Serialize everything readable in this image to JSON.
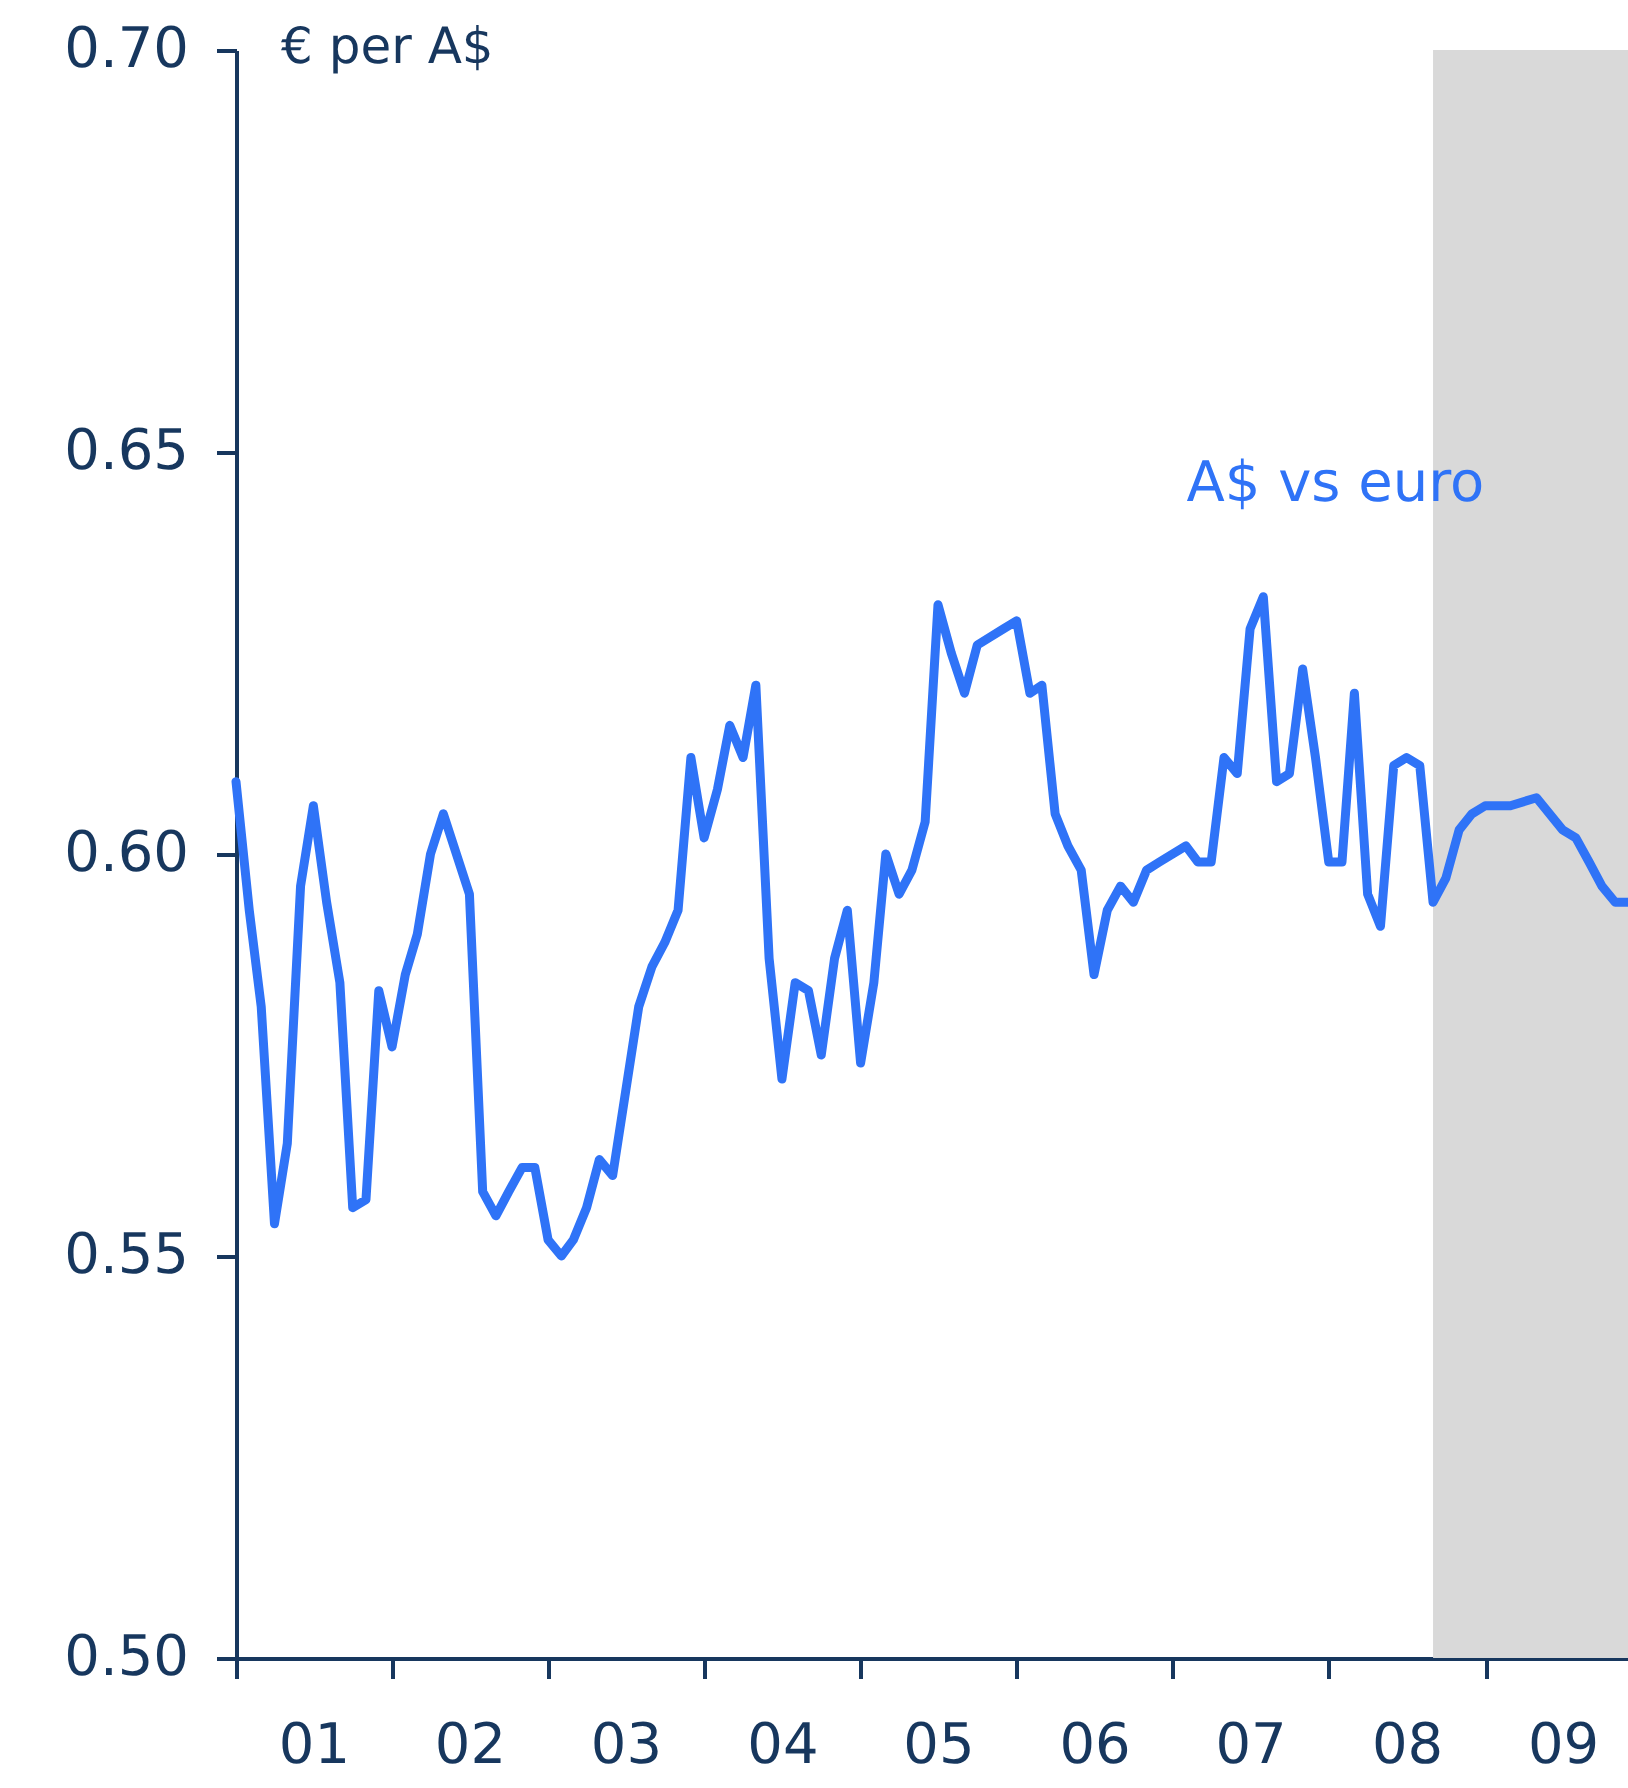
{
  "chart_data": {
    "type": "line",
    "ylabel": "€ per A$",
    "x": [
      "2001-01",
      "2001-02",
      "2001-03",
      "2001-04",
      "2001-05",
      "2001-06",
      "2001-07",
      "2001-08",
      "2001-09",
      "2001-10",
      "2001-11",
      "2001-12",
      "2002-01",
      "2002-02",
      "2002-03",
      "2002-04",
      "2002-05",
      "2002-07",
      "2002-08",
      "2002-09",
      "2002-10",
      "2002-11",
      "2002-12",
      "2003-01",
      "2003-02",
      "2003-03",
      "2003-04",
      "2003-05",
      "2003-06",
      "2003-08",
      "2003-09",
      "2003-10",
      "2003-11",
      "2003-12",
      "2004-01",
      "2004-02",
      "2004-03",
      "2004-04",
      "2004-05",
      "2004-06",
      "2004-07",
      "2004-08",
      "2004-09",
      "2004-10",
      "2004-11",
      "2004-12",
      "2005-01",
      "2005-02",
      "2005-03",
      "2005-04",
      "2005-05",
      "2005-06",
      "2005-07",
      "2005-08",
      "2005-09",
      "2005-10",
      "2005-12",
      "2006-01",
      "2006-02",
      "2006-03",
      "2006-04",
      "2006-05",
      "2006-06",
      "2006-07",
      "2006-08",
      "2006-09",
      "2006-10",
      "2006-11",
      "2006-12",
      "2007-02",
      "2007-03",
      "2007-04",
      "2007-05",
      "2007-06",
      "2007-07",
      "2007-08",
      "2007-09",
      "2007-10",
      "2007-11",
      "2007-12",
      "2008-01",
      "2008-02",
      "2008-03",
      "2008-04",
      "2008-05",
      "2008-06",
      "2008-07",
      "2008-08",
      "2008-09",
      "2008-10",
      "2008-11",
      "2008-12",
      "2009-01",
      "2009-03",
      "2009-05",
      "2009-07",
      "2009-08",
      "2009-09",
      "2009-10",
      "2009-11",
      "2009-12"
    ],
    "series": [
      {
        "name": "A$ vs euro",
        "color": "#2f73f7",
        "values": [
          0.609,
          0.593,
          0.581,
          0.554,
          0.564,
          0.596,
          0.606,
          0.594,
          0.584,
          0.556,
          0.557,
          0.583,
          0.576,
          0.585,
          0.59,
          0.6,
          0.605,
          0.595,
          0.558,
          0.555,
          0.558,
          0.561,
          0.561,
          0.552,
          0.55,
          0.552,
          0.556,
          0.562,
          0.56,
          0.581,
          0.586,
          0.589,
          0.593,
          0.612,
          0.602,
          0.608,
          0.616,
          0.612,
          0.621,
          0.587,
          0.572,
          0.584,
          0.583,
          0.575,
          0.587,
          0.593,
          0.574,
          0.584,
          0.6,
          0.595,
          0.598,
          0.604,
          0.631,
          0.625,
          0.62,
          0.626,
          0.628,
          0.629,
          0.62,
          0.621,
          0.605,
          0.601,
          0.598,
          0.585,
          0.593,
          0.596,
          0.594,
          0.598,
          0.599,
          0.601,
          0.599,
          0.599,
          0.612,
          0.61,
          0.628,
          0.632,
          0.609,
          0.61,
          0.623,
          0.612,
          0.599,
          0.599,
          0.62,
          0.595,
          0.591,
          0.611,
          0.612,
          0.611,
          0.594,
          0.597,
          0.603,
          0.605,
          0.606,
          0.606,
          0.607,
          0.603,
          0.602,
          0.599,
          0.596,
          0.594,
          0.594
        ]
      }
    ],
    "xlim": [
      "2001-01",
      "2009-12"
    ],
    "xticks": [
      {
        "value": "2001-01",
        "label": null
      },
      {
        "value": "2001-07",
        "label": "01"
      },
      {
        "value": "2002-01",
        "label": null
      },
      {
        "value": "2002-07",
        "label": "02"
      },
      {
        "value": "2003-01",
        "label": null
      },
      {
        "value": "2003-07",
        "label": "03"
      },
      {
        "value": "2004-01",
        "label": null
      },
      {
        "value": "2004-07",
        "label": "04"
      },
      {
        "value": "2005-01",
        "label": null
      },
      {
        "value": "2005-07",
        "label": "05"
      },
      {
        "value": "2006-01",
        "label": null
      },
      {
        "value": "2006-07",
        "label": "06"
      },
      {
        "value": "2007-01",
        "label": null
      },
      {
        "value": "2007-07",
        "label": "07"
      },
      {
        "value": "2008-01",
        "label": null
      },
      {
        "value": "2008-07",
        "label": "08"
      },
      {
        "value": "2009-01",
        "label": null
      },
      {
        "value": "2009-07",
        "label": "09"
      }
    ],
    "ylim": [
      0.5,
      0.7
    ],
    "yticks": [
      {
        "value": 0.5,
        "label": "0.50"
      },
      {
        "value": 0.55,
        "label": "0.55"
      },
      {
        "value": 0.6,
        "label": "0.60"
      },
      {
        "value": 0.65,
        "label": "0.65"
      },
      {
        "value": 0.7,
        "label": "0.70"
      }
    ],
    "bands": [
      {
        "axis": "x",
        "from": "2008-09",
        "to": "2009-12",
        "color": "#d9d9d9"
      }
    ],
    "line_style": "solid"
  }
}
